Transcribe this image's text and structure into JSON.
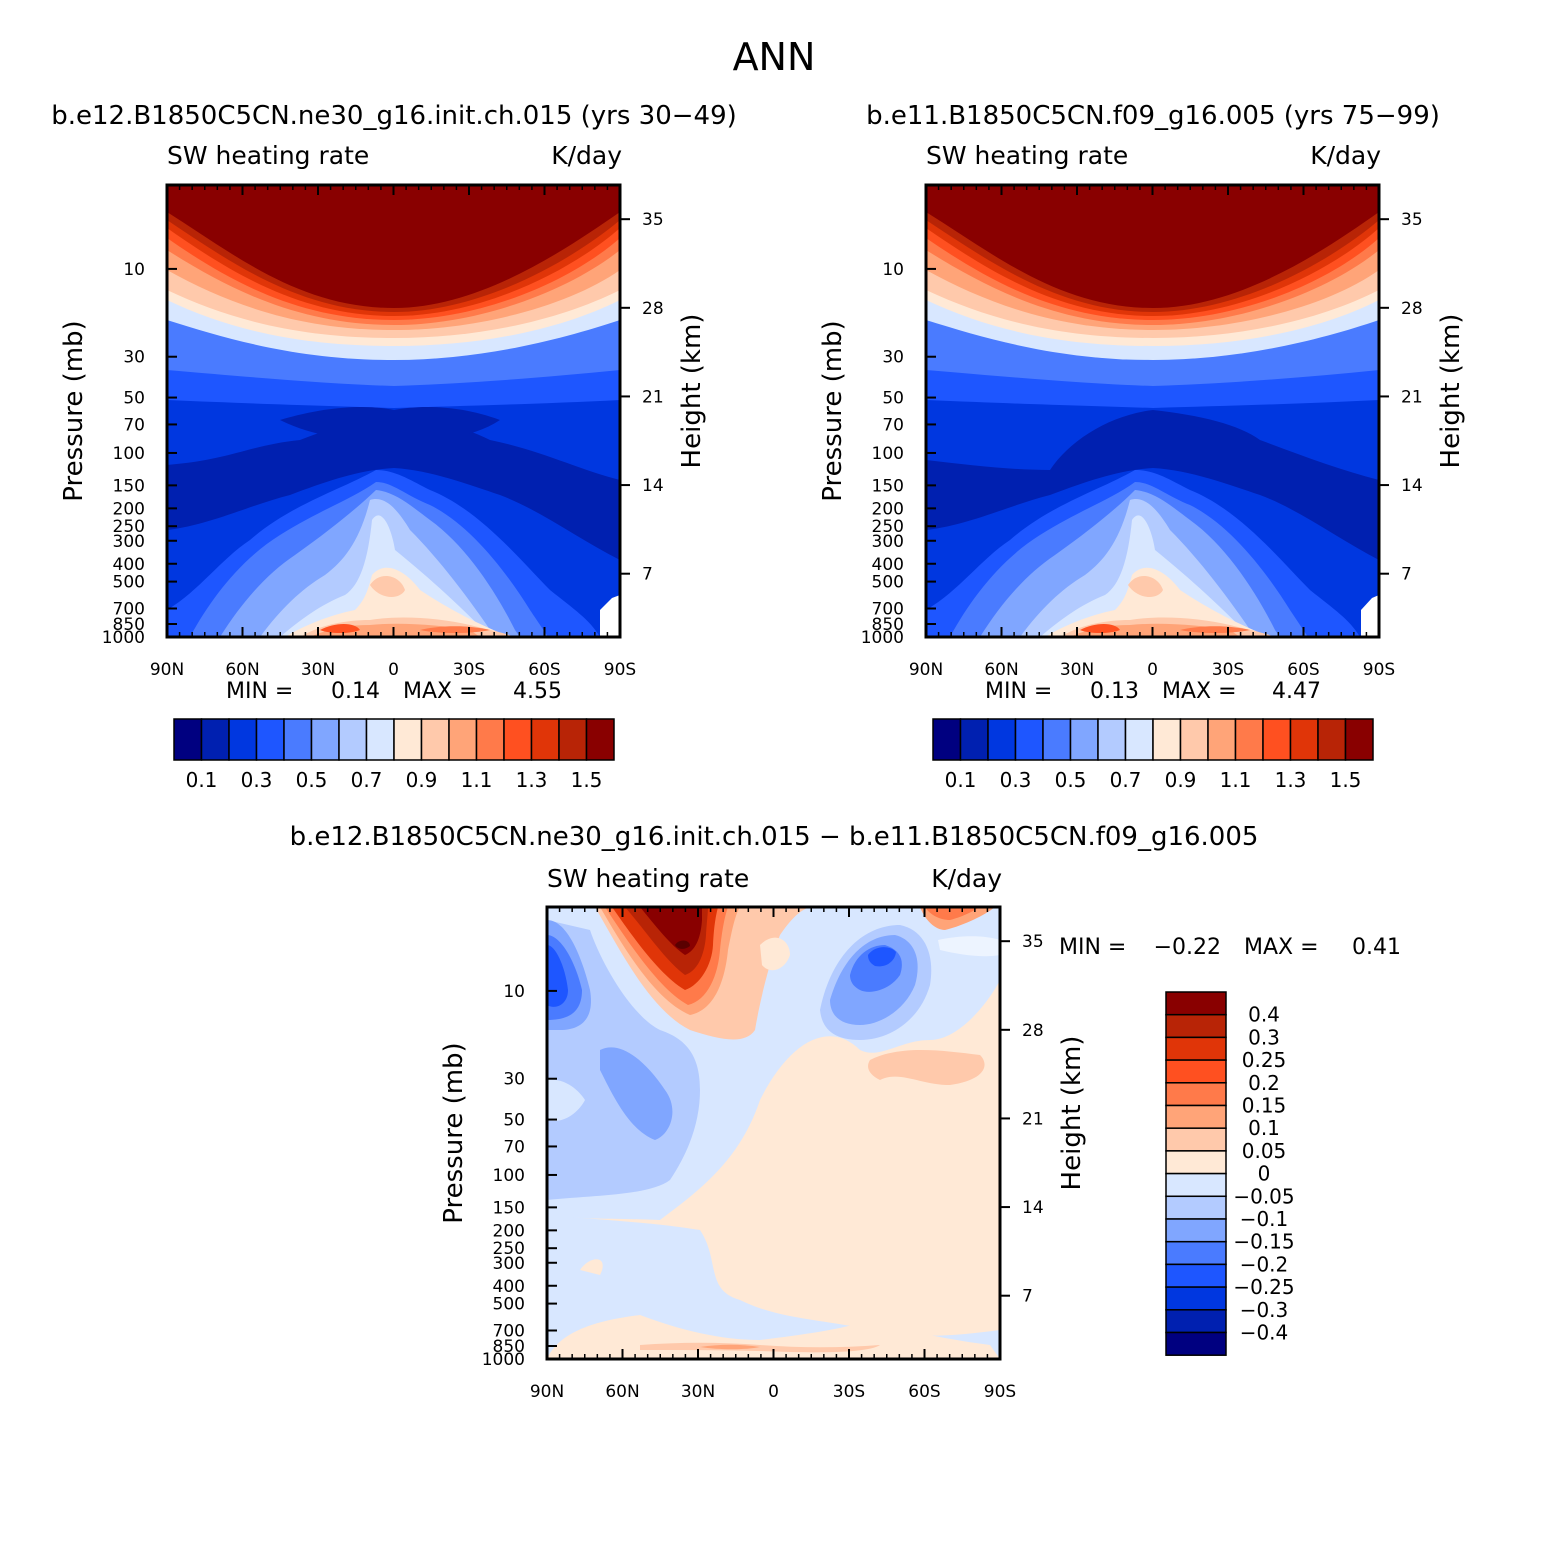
{
  "figure": {
    "title": "ANN"
  },
  "chart_data": [
    {
      "type": "contour",
      "panel": "left",
      "title": "b.e12.B1850C5CN.ne30_g16.init.ch.015 (yrs 30-49)",
      "variable": "SW heating rate",
      "units": "K/day",
      "ylabel": "Pressure (mb)",
      "ylabel_right": "Height (km)",
      "x_ticks": [
        "90N",
        "60N",
        "30N",
        "0",
        "30S",
        "60S",
        "90S"
      ],
      "y_ticks": [
        "10",
        "30",
        "50",
        "70",
        "100",
        "150",
        "200",
        "250",
        "300",
        "400",
        "500",
        "700",
        "850",
        "1000"
      ],
      "height_ticks": [
        "35",
        "28",
        "21",
        "14",
        "7"
      ],
      "min_label": "MIN =",
      "min": "0.14",
      "max_label": "MAX =",
      "max": "4.55",
      "colorbar_labels": [
        "0.1",
        "0.3",
        "0.5",
        "0.7",
        "0.9",
        "1.1",
        "1.3",
        "1.5"
      ]
    },
    {
      "type": "contour",
      "panel": "right",
      "title": "b.e11.B1850C5CN.f09_g16.005 (yrs 75-99)",
      "variable": "SW heating rate",
      "units": "K/day",
      "ylabel": "Pressure (mb)",
      "ylabel_right": "Height (km)",
      "x_ticks": [
        "90N",
        "60N",
        "30N",
        "0",
        "30S",
        "60S",
        "90S"
      ],
      "y_ticks": [
        "10",
        "30",
        "50",
        "70",
        "100",
        "150",
        "200",
        "250",
        "300",
        "400",
        "500",
        "700",
        "850",
        "1000"
      ],
      "height_ticks": [
        "35",
        "28",
        "21",
        "14",
        "7"
      ],
      "min_label": "MIN =",
      "min": "0.13",
      "max_label": "MAX =",
      "max": "4.47",
      "colorbar_labels": [
        "0.1",
        "0.3",
        "0.5",
        "0.7",
        "0.9",
        "1.1",
        "1.3",
        "1.5"
      ]
    },
    {
      "type": "contour",
      "panel": "difference",
      "title": "b.e12.B1850C5CN.ne30_g16.init.ch.015 - b.e11.B1850C5CN.f09_g16.005",
      "variable": "SW heating rate",
      "units": "K/day",
      "ylabel": "Pressure (mb)",
      "ylabel_right": "Height (km)",
      "x_ticks": [
        "90N",
        "60N",
        "30N",
        "0",
        "30S",
        "60S",
        "90S"
      ],
      "y_ticks": [
        "10",
        "30",
        "50",
        "70",
        "100",
        "150",
        "200",
        "250",
        "300",
        "400",
        "500",
        "700",
        "850",
        "1000"
      ],
      "height_ticks": [
        "35",
        "28",
        "21",
        "14",
        "7"
      ],
      "min_label": "MIN =",
      "min": "-0.22",
      "max_label": "MAX =",
      "max": "0.41",
      "colorbar_labels": [
        "0.4",
        "0.3",
        "0.25",
        "0.2",
        "0.15",
        "0.1",
        "0.05",
        "0",
        "-0.05",
        "-0.1",
        "-0.15",
        "-0.2",
        "-0.25",
        "-0.3",
        "-0.4"
      ]
    }
  ],
  "colors": {
    "levels_16": [
      "#000080",
      "#0020b0",
      "#0037e0",
      "#1e56ff",
      "#4a7bff",
      "#80a6ff",
      "#b3cbff",
      "#d8e7ff",
      "#ffe9d6",
      "#ffc9ab",
      "#ffa478",
      "#ff7a4a",
      "#ff5020",
      "#e03508",
      "#b82406",
      "#890000"
    ]
  }
}
